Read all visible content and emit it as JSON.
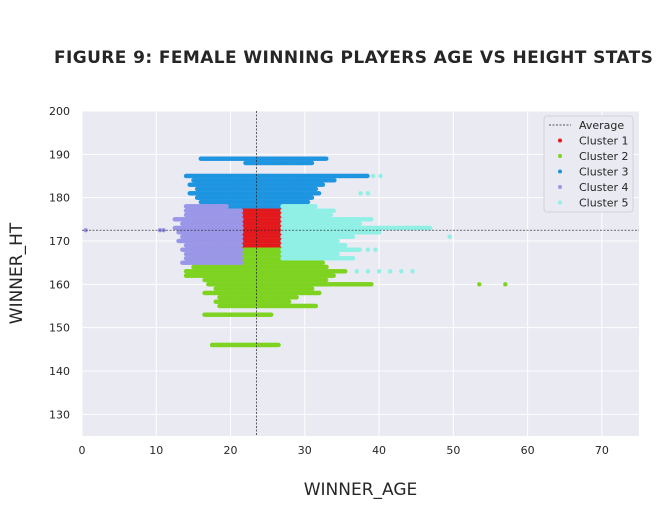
{
  "chart_data": {
    "type": "scatter",
    "title": "FIGURE 9: FEMALE WINNING PLAYERS AGE VS HEIGHT STATS",
    "xlabel": "WINNER_AGE",
    "ylabel": "WINNER_HT",
    "xlim": [
      0,
      75
    ],
    "ylim": [
      125,
      200
    ],
    "xticks": [
      "0",
      "10",
      "20",
      "30",
      "40",
      "50",
      "60",
      "70"
    ],
    "yticks": [
      "130",
      "140",
      "150",
      "160",
      "170",
      "180",
      "190",
      "200"
    ],
    "grid": true,
    "legend_position": "top-right",
    "average": {
      "label": "Average",
      "x": 23.5,
      "y": 172.5
    },
    "clusters": [
      {
        "name": "Cluster 1",
        "color": "#e3191c",
        "rows": [
          {
            "y": 168,
            "x_min": 21.5,
            "x_max": 27.2
          },
          {
            "y": 169,
            "x_min": 21.5,
            "x_max": 27.4
          },
          {
            "y": 170,
            "x_min": 21.5,
            "x_max": 27.4
          },
          {
            "y": 171,
            "x_min": 21.5,
            "x_max": 27.5
          },
          {
            "y": 172,
            "x_min": 21.5,
            "x_max": 27.4
          },
          {
            "y": 173,
            "x_min": 21.5,
            "x_max": 27.6
          },
          {
            "y": 174,
            "x_min": 21.5,
            "x_max": 27.5
          },
          {
            "y": 175,
            "x_min": 21.5,
            "x_max": 27.4
          },
          {
            "y": 176,
            "x_min": 21.5,
            "x_max": 27.3
          },
          {
            "y": 177,
            "x_min": 21.5,
            "x_max": 27.0
          }
        ]
      },
      {
        "name": "Cluster 2",
        "color": "#7ed321",
        "rows": [
          {
            "y": 146,
            "x_min": 17.5,
            "x_max": 26.5
          },
          {
            "y": 153,
            "x_min": 16.5,
            "x_max": 25.5
          },
          {
            "y": 155,
            "x_min": 18.5,
            "x_max": 31.5
          },
          {
            "y": 156,
            "x_min": 18.0,
            "x_max": 28.0
          },
          {
            "y": 157,
            "x_min": 18.5,
            "x_max": 29.0
          },
          {
            "y": 158,
            "x_min": 16.5,
            "x_max": 32.0
          },
          {
            "y": 159,
            "x_min": 18.0,
            "x_max": 31.0
          },
          {
            "y": 160,
            "x_min": 17.0,
            "x_max": 39.0
          },
          {
            "y": 161,
            "x_min": 16.5,
            "x_max": 33.0
          },
          {
            "y": 162,
            "x_min": 14.0,
            "x_max": 34.0
          },
          {
            "y": 163,
            "x_min": 14.0,
            "x_max": 35.5
          },
          {
            "y": 164,
            "x_min": 15.0,
            "x_max": 33.0
          },
          {
            "y": 165,
            "x_min": 15.0,
            "x_max": 32.5
          },
          {
            "y": 166,
            "x_min": 15.5,
            "x_max": 31.5
          },
          {
            "y": 167,
            "x_min": 17.5,
            "x_max": 31.0
          },
          {
            "y": 168,
            "x_min": 21.0,
            "x_max": 29.0
          }
        ],
        "points": [
          [
            53.5,
            160
          ],
          [
            57,
            160
          ],
          [
            23.8,
            146
          ]
        ]
      },
      {
        "name": "Cluster 3",
        "color": "#1f95e0",
        "rows": [
          {
            "y": 178,
            "x_min": 16.5,
            "x_max": 30.0
          },
          {
            "y": 179,
            "x_min": 16.0,
            "x_max": 30.5
          },
          {
            "y": 180,
            "x_min": 15.5,
            "x_max": 31.0
          },
          {
            "y": 181,
            "x_min": 14.5,
            "x_max": 32.0
          },
          {
            "y": 182,
            "x_min": 15.5,
            "x_max": 31.5
          },
          {
            "y": 183,
            "x_min": 14.5,
            "x_max": 32.5
          },
          {
            "y": 184,
            "x_min": 15.0,
            "x_max": 34.0
          },
          {
            "y": 185,
            "x_min": 14.0,
            "x_max": 38.5
          },
          {
            "y": 188,
            "x_min": 22.0,
            "x_max": 31.0
          },
          {
            "y": 189,
            "x_min": 16.0,
            "x_max": 33.0
          }
        ],
        "points": [
          [
            23.5,
            188
          ]
        ]
      },
      {
        "name": "Cluster 4",
        "color": "#9b97e8",
        "rows": [
          {
            "y": 165,
            "x_min": 13.5,
            "x_max": 21.5
          },
          {
            "y": 166,
            "x_min": 14.0,
            "x_max": 21.5
          },
          {
            "y": 167,
            "x_min": 14.0,
            "x_max": 21.5
          },
          {
            "y": 168,
            "x_min": 13.5,
            "x_max": 21.5
          },
          {
            "y": 169,
            "x_min": 14.0,
            "x_max": 21.5
          },
          {
            "y": 170,
            "x_min": 13.0,
            "x_max": 21.5
          },
          {
            "y": 171,
            "x_min": 13.5,
            "x_max": 21.5
          },
          {
            "y": 172,
            "x_min": 13.0,
            "x_max": 21.5
          },
          {
            "y": 173,
            "x_min": 12.5,
            "x_max": 21.5
          },
          {
            "y": 174,
            "x_min": 13.5,
            "x_max": 21.5
          },
          {
            "y": 175,
            "x_min": 12.5,
            "x_max": 21.5
          },
          {
            "y": 176,
            "x_min": 14.0,
            "x_max": 21.5
          },
          {
            "y": 177,
            "x_min": 14.0,
            "x_max": 21.5
          },
          {
            "y": 178,
            "x_min": 14.0,
            "x_max": 19.5
          }
        ],
        "points": [
          [
            0.5,
            172.5
          ],
          [
            10.5,
            172.5
          ],
          [
            11.0,
            172.5
          ]
        ]
      },
      {
        "name": "Cluster 5",
        "color": "#90f0e6",
        "rows": [
          {
            "y": 166,
            "x_min": 27.0,
            "x_max": 36.5
          },
          {
            "y": 167,
            "x_min": 27.0,
            "x_max": 34.5
          },
          {
            "y": 168,
            "x_min": 27.0,
            "x_max": 37.5
          },
          {
            "y": 169,
            "x_min": 27.0,
            "x_max": 35.5
          },
          {
            "y": 170,
            "x_min": 27.0,
            "x_max": 34.5
          },
          {
            "y": 171,
            "x_min": 27.0,
            "x_max": 36.5
          },
          {
            "y": 172,
            "x_min": 27.0,
            "x_max": 40.0
          },
          {
            "y": 173,
            "x_min": 27.0,
            "x_max": 47.0
          },
          {
            "y": 174,
            "x_min": 27.0,
            "x_max": 37.5
          },
          {
            "y": 175,
            "x_min": 27.0,
            "x_max": 39.0
          },
          {
            "y": 176,
            "x_min": 27.0,
            "x_max": 33.5
          },
          {
            "y": 177,
            "x_min": 27.0,
            "x_max": 34.0
          },
          {
            "y": 178,
            "x_min": 27.0,
            "x_max": 31.5
          }
        ],
        "points": [
          [
            49.5,
            171
          ],
          [
            38.5,
            168
          ],
          [
            39.5,
            168
          ],
          [
            37,
            163
          ],
          [
            38.5,
            163
          ],
          [
            40,
            163
          ],
          [
            41.5,
            163
          ],
          [
            43,
            163
          ],
          [
            44.5,
            163
          ],
          [
            39.2,
            185
          ],
          [
            40.2,
            185
          ],
          [
            37.5,
            181
          ],
          [
            38.5,
            181
          ]
        ]
      }
    ]
  }
}
